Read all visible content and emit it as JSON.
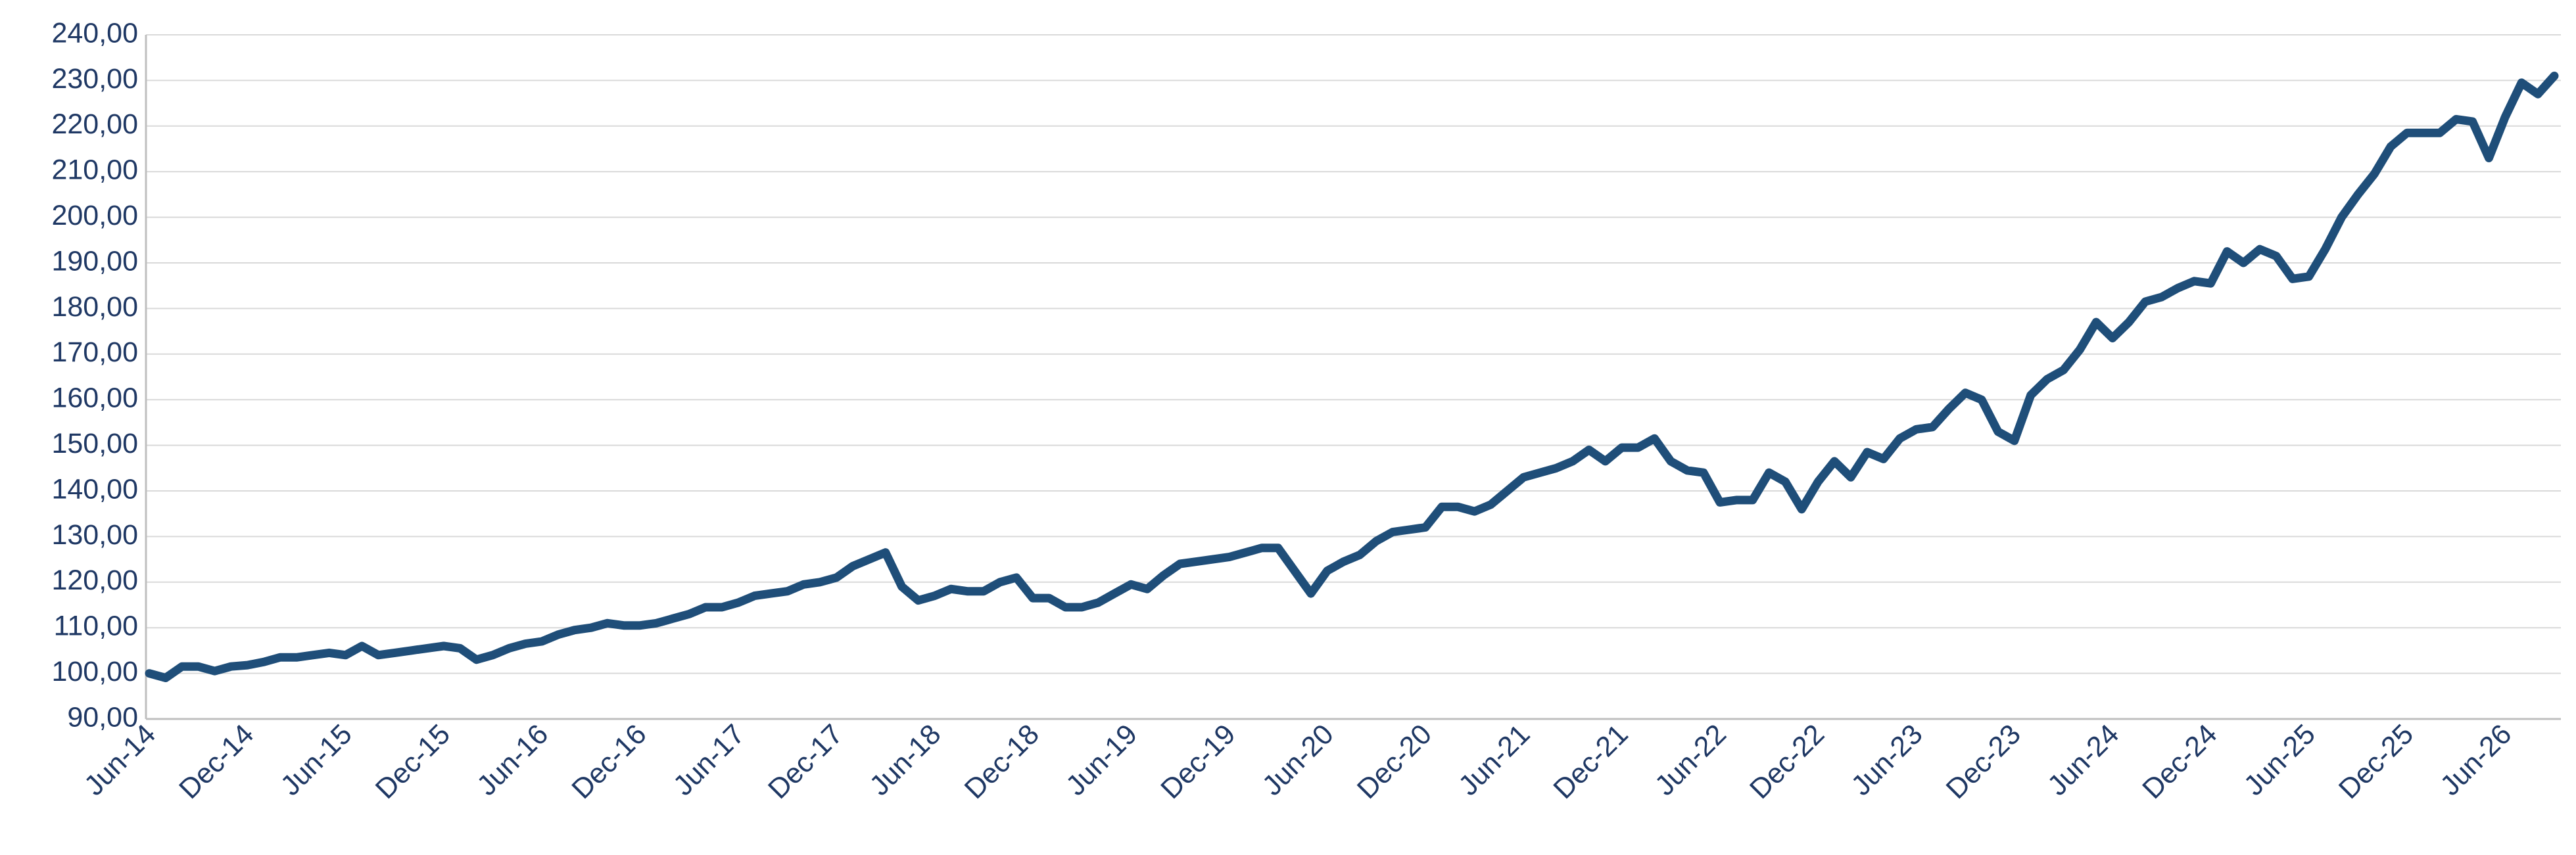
{
  "chart_data": {
    "type": "line",
    "categories": [
      "Jun-14",
      null,
      null,
      null,
      null,
      null,
      "Dec-14",
      null,
      null,
      null,
      null,
      null,
      "Jun-15",
      null,
      null,
      null,
      null,
      null,
      "Dec-15",
      null,
      null,
      null,
      null,
      null,
      "Jun-16",
      null,
      null,
      null,
      null,
      null,
      "Dec-16",
      null,
      null,
      null,
      null,
      null,
      "Jun-17",
      null,
      null,
      null,
      null,
      null,
      "Dec-17",
      null,
      null,
      null,
      null,
      null,
      "Jun-18",
      null,
      null,
      null,
      null,
      null,
      "Dec-18",
      null,
      null,
      null,
      null,
      null,
      "Jun-19",
      null,
      null,
      null,
      null,
      null,
      "Dec-19",
      null,
      null,
      null,
      null,
      null,
      "Jun-20",
      null,
      null,
      null,
      null,
      null,
      "Dec-20",
      null,
      null,
      null,
      null,
      null,
      "Jun-21",
      null,
      null,
      null,
      null,
      null,
      "Dec-21",
      null,
      null,
      null,
      null,
      null,
      "Jun-22",
      null,
      null,
      null,
      null,
      null,
      "Dec-22",
      null,
      null,
      null,
      null,
      null,
      "Jun-23",
      null,
      null,
      null,
      null,
      null,
      "Dec-23",
      null,
      null,
      null,
      null,
      null,
      "Jun-24",
      null,
      null,
      null,
      null,
      null,
      "Dec-24",
      null,
      null,
      null,
      null,
      null,
      "Jun-25",
      null,
      null,
      null,
      null,
      null,
      "Dec-25",
      null,
      null,
      null,
      null,
      null,
      "Jun-26",
      null,
      null,
      null
    ],
    "series": [
      {
        "color": "#1f4e79",
        "values": [
          100,
          99,
          101.5,
          101.5,
          100.5,
          101.5,
          101.8,
          102.5,
          103.5,
          103.5,
          104,
          104.5,
          104,
          106,
          104,
          104.5,
          105,
          105.5,
          106,
          105.5,
          103,
          104,
          105.5,
          106.5,
          107,
          108.5,
          109.5,
          110,
          111,
          110.5,
          110.5,
          111,
          112,
          113,
          114.5,
          114.5,
          115.5,
          117,
          117.5,
          118,
          119.5,
          120,
          121,
          123.5,
          125,
          126.5,
          119,
          116,
          117,
          118.5,
          118,
          118,
          120,
          121,
          116.5,
          116.5,
          114.5,
          114.5,
          115.5,
          117.5,
          119.5,
          118.5,
          121.5,
          124,
          124.5,
          125,
          125.5,
          126.5,
          127.5,
          127.5,
          122.5,
          117.5,
          122.5,
          124.5,
          126,
          129,
          131,
          131.5,
          132,
          136.5,
          136.5,
          135.5,
          137,
          140,
          143,
          144,
          145,
          146.5,
          149,
          146.5,
          149.5,
          149.5,
          151.5,
          146.5,
          144.5,
          144,
          137.5,
          138,
          138,
          144,
          142,
          136,
          142,
          146.5,
          143,
          148.5,
          147,
          151.5,
          153.5,
          154,
          158,
          161.5,
          160,
          153,
          151,
          161,
          164.5,
          166.5,
          171,
          177,
          173.5,
          177,
          181.5,
          182.5,
          184.5,
          186,
          185.5,
          192.5,
          190,
          193,
          191.5,
          186.5,
          187,
          193,
          200,
          205,
          209.5,
          215.5,
          218.5,
          218.5,
          218.5,
          221.5,
          221,
          213,
          222,
          229.5,
          227,
          231
        ]
      }
    ],
    "ylim": [
      90,
      240
    ],
    "yticks": [
      {
        "value": 90,
        "label": "90,00"
      },
      {
        "value": 100,
        "label": "100,00"
      },
      {
        "value": 110,
        "label": "110,00"
      },
      {
        "value": 120,
        "label": "120,00"
      },
      {
        "value": 130,
        "label": "130,00"
      },
      {
        "value": 140,
        "label": "140,00"
      },
      {
        "value": 150,
        "label": "150,00"
      },
      {
        "value": 160,
        "label": "160,00"
      },
      {
        "value": 170,
        "label": "170,00"
      },
      {
        "value": 180,
        "label": "180,00"
      },
      {
        "value": 190,
        "label": "190,00"
      },
      {
        "value": 200,
        "label": "200,00"
      },
      {
        "value": 210,
        "label": "210,00"
      },
      {
        "value": 220,
        "label": "220,00"
      },
      {
        "value": 230,
        "label": "230,00"
      },
      {
        "value": 240,
        "label": "240,00"
      }
    ],
    "grid": true
  }
}
